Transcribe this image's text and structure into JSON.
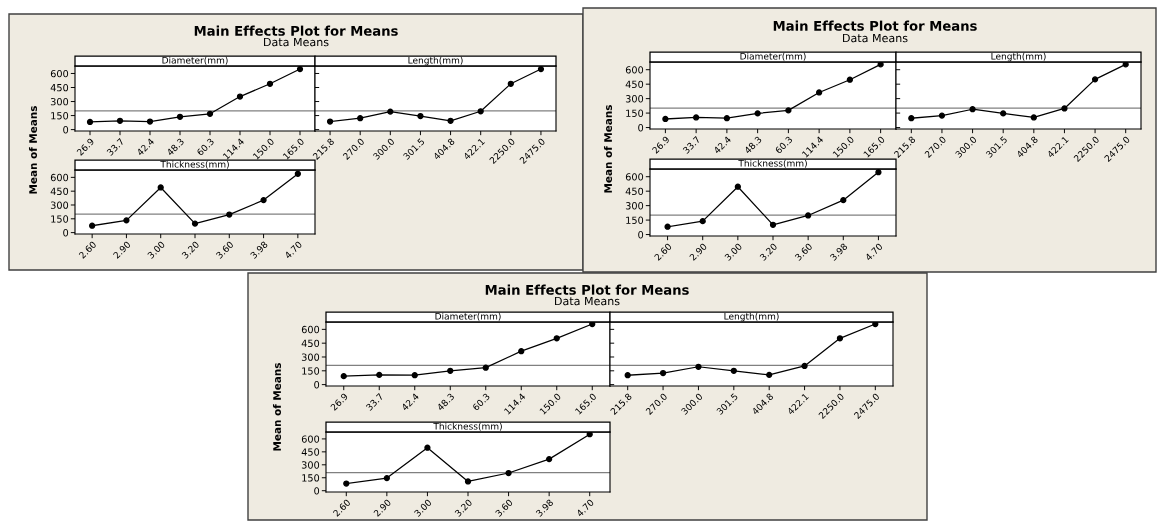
{
  "chart_data": [
    {
      "type": "line",
      "title": "Main Effects Plot for Means",
      "subtitle": "Data Means",
      "ylabel": "Mean of Means",
      "annotations": [
        "Diameter(mm)"
      ],
      "categories": [
        "26.9",
        "33.7",
        "42.4",
        "48.3",
        "60.3",
        "114.4",
        "150.0",
        "165.0"
      ],
      "series": [
        {
          "color": "#000000",
          "values": [
            82,
            94,
            86,
            137,
            169,
            353,
            490,
            647
          ]
        }
      ],
      "ylim": [
        -15,
        680
      ],
      "yticks": [
        0,
        150,
        300,
        450,
        600
      ],
      "ref_lines": [
        {
          "axis": "y",
          "value": 200,
          "color": "#808080"
        }
      ],
      "marker": "circle",
      "grid": false
    },
    {
      "type": "line",
      "annotations": [
        "Length(mm)"
      ],
      "categories": [
        "215.8",
        "270.0",
        "300.0",
        "301.5",
        "404.8",
        "422.1",
        "2250.0",
        "2475.0"
      ],
      "series": [
        {
          "color": "#000000",
          "values": [
            86,
            122,
            192,
            145,
            94,
            196,
            490,
            647
          ]
        }
      ],
      "ylim": [
        -15,
        680
      ],
      "yticks": [
        0,
        150,
        300,
        450,
        600
      ],
      "ref_lines": [
        {
          "axis": "y",
          "value": 200,
          "color": "#808080"
        }
      ],
      "marker": "circle",
      "grid": false,
      "tick_labels": "x"
    },
    {
      "type": "line",
      "annotations": [
        "Thickness(mm)"
      ],
      "categories": [
        "2.60",
        "2.90",
        "3.00",
        "3.20",
        "3.60",
        "3.98",
        "4.70"
      ],
      "series": [
        {
          "color": "#000000",
          "values": [
            75,
            133,
            490,
            98,
            196,
            353,
            639
          ]
        }
      ],
      "ylim": [
        -15,
        680
      ],
      "yticks": [
        0,
        150,
        300,
        450,
        600
      ],
      "ref_lines": [
        {
          "axis": "y",
          "value": 200,
          "color": "#808080"
        }
      ],
      "marker": "circle",
      "grid": false
    },
    {
      "type": "line",
      "title": "Main Effects Plot for Means",
      "subtitle": "Data Means",
      "ylabel": "Mean of Means",
      "annotations": [
        "Diameter(mm)"
      ],
      "categories": [
        "26.9",
        "33.7",
        "42.4",
        "48.3",
        "60.3",
        "114.4",
        "150.0",
        "165.0"
      ],
      "series": [
        {
          "color": "#000000",
          "values": [
            89,
            105,
            97,
            147,
            178,
            364,
            496,
            655
          ]
        }
      ],
      "ylim": [
        -15,
        680
      ],
      "yticks": [
        0,
        150,
        300,
        450,
        600
      ],
      "ref_lines": [
        {
          "axis": "y",
          "value": 201,
          "color": "#808080"
        }
      ],
      "marker": "circle",
      "grid": false
    },
    {
      "type": "line",
      "annotations": [
        "Length(mm)"
      ],
      "categories": [
        "215.8",
        "270.0",
        "300.0",
        "301.5",
        "404.8",
        "422.1",
        "2250.0",
        "2475.0"
      ],
      "series": [
        {
          "color": "#000000",
          "values": [
            97,
            124,
            190,
            147,
            105,
            198,
            500,
            655
          ]
        }
      ],
      "ylim": [
        -15,
        680
      ],
      "yticks": [
        0,
        150,
        300,
        450,
        600
      ],
      "ref_lines": [
        {
          "axis": "y",
          "value": 201,
          "color": "#808080"
        }
      ],
      "marker": "circle",
      "grid": false,
      "tick_labels": "x"
    },
    {
      "type": "line",
      "annotations": [
        "Thickness(mm)"
      ],
      "categories": [
        "2.60",
        "2.90",
        "3.00",
        "3.20",
        "3.60",
        "3.98",
        "4.70"
      ],
      "series": [
        {
          "color": "#000000",
          "values": [
            81,
            139,
            496,
            101,
            198,
            357,
            647
          ]
        }
      ],
      "ylim": [
        -15,
        680
      ],
      "yticks": [
        0,
        150,
        300,
        450,
        600
      ],
      "ref_lines": [
        {
          "axis": "y",
          "value": 201,
          "color": "#808080"
        }
      ],
      "marker": "circle",
      "grid": false
    },
    {
      "type": "line",
      "title": "Main Effects Plot for Means",
      "subtitle": "Data Means",
      "ylabel": "Mean of Means",
      "annotations": [
        "Diameter(mm)"
      ],
      "categories": [
        "26.9",
        "33.7",
        "42.4",
        "48.3",
        "60.3",
        "114.4",
        "150.0",
        "165.0"
      ],
      "series": [
        {
          "color": "#000000",
          "values": [
            92,
            106,
            102,
            150,
            184,
            363,
            503,
            658
          ]
        }
      ],
      "ylim": [
        -15,
        680
      ],
      "yticks": [
        0,
        150,
        300,
        450,
        600
      ],
      "ref_lines": [
        {
          "axis": "y",
          "value": 210,
          "color": "#808080"
        }
      ],
      "marker": "circle",
      "grid": false
    },
    {
      "type": "line",
      "annotations": [
        "Length(mm)"
      ],
      "categories": [
        "215.8",
        "270.0",
        "300.0",
        "301.5",
        "404.8",
        "422.1",
        "2250.0",
        "2475.0"
      ],
      "series": [
        {
          "color": "#000000",
          "values": [
            102,
            126,
            194,
            150,
            106,
            203,
            503,
            658
          ]
        }
      ],
      "ylim": [
        -15,
        680
      ],
      "yticks": [
        0,
        150,
        300,
        450,
        600
      ],
      "ref_lines": [
        {
          "axis": "y",
          "value": 210,
          "color": "#808080"
        }
      ],
      "marker": "circle",
      "grid": false,
      "tick_labels": "x"
    },
    {
      "type": "line",
      "annotations": [
        "Thickness(mm)"
      ],
      "categories": [
        "2.60",
        "2.90",
        "3.00",
        "3.20",
        "3.60",
        "3.98",
        "4.70"
      ],
      "series": [
        {
          "color": "#000000",
          "values": [
            83,
            146,
            498,
            107,
            205,
            366,
            654
          ]
        }
      ],
      "ylim": [
        -15,
        680
      ],
      "yticks": [
        0,
        150,
        300,
        450,
        600
      ],
      "ref_lines": [
        {
          "axis": "y",
          "value": 210,
          "color": "#808080"
        }
      ],
      "marker": "circle",
      "grid": false
    }
  ]
}
